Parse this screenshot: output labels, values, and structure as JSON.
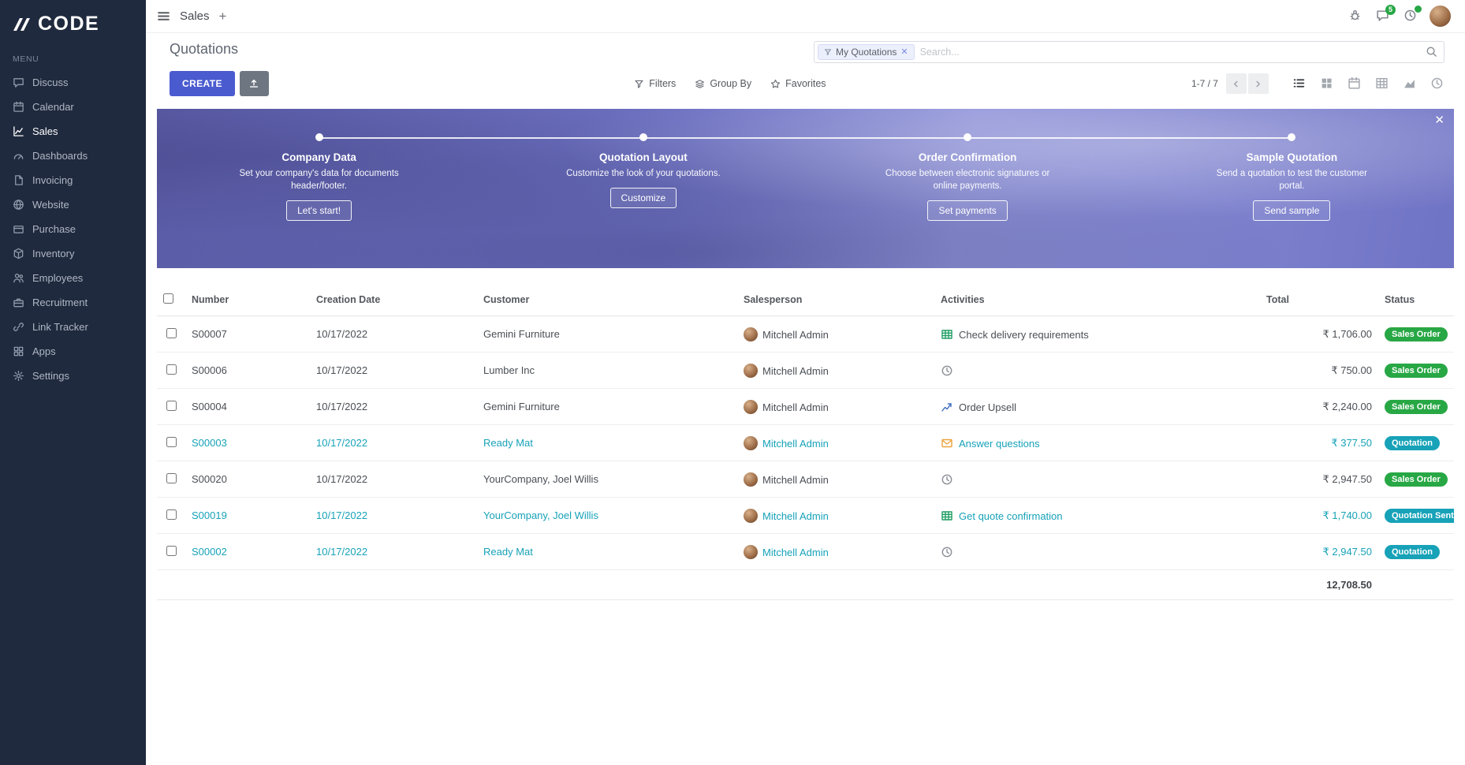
{
  "brand": {
    "name": "CODE"
  },
  "topbar": {
    "app_title": "Sales",
    "messages_badge": "5"
  },
  "sidebar": {
    "menu_label": "MENU",
    "items": [
      {
        "label": "Discuss",
        "icon": "discuss-icon",
        "active": false
      },
      {
        "label": "Calendar",
        "icon": "calendar-icon",
        "active": false
      },
      {
        "label": "Sales",
        "icon": "sales-icon",
        "active": true
      },
      {
        "label": "Dashboards",
        "icon": "dashboards-icon",
        "active": false
      },
      {
        "label": "Invoicing",
        "icon": "invoicing-icon",
        "active": false
      },
      {
        "label": "Website",
        "icon": "website-icon",
        "active": false
      },
      {
        "label": "Purchase",
        "icon": "purchase-icon",
        "active": false
      },
      {
        "label": "Inventory",
        "icon": "inventory-icon",
        "active": false
      },
      {
        "label": "Employees",
        "icon": "employees-icon",
        "active": false
      },
      {
        "label": "Recruitment",
        "icon": "recruitment-icon",
        "active": false
      },
      {
        "label": "Link Tracker",
        "icon": "link-tracker-icon",
        "active": false
      },
      {
        "label": "Apps",
        "icon": "apps-icon",
        "active": false
      },
      {
        "label": "Settings",
        "icon": "settings-icon",
        "active": false
      }
    ]
  },
  "control_panel": {
    "title": "Quotations",
    "search": {
      "facet": "My Quotations",
      "placeholder": "Search..."
    },
    "create_label": "CREATE",
    "filters_label": "Filters",
    "group_by_label": "Group By",
    "favorites_label": "Favorites",
    "pager": "1-7 / 7"
  },
  "banner": {
    "steps": [
      {
        "title": "Company Data",
        "desc": "Set your company's data for documents header/footer.",
        "button": "Let's start!"
      },
      {
        "title": "Quotation Layout",
        "desc": "Customize the look of your quotations.",
        "button": "Customize"
      },
      {
        "title": "Order Confirmation",
        "desc": "Choose between electronic signatures or online payments.",
        "button": "Set payments"
      },
      {
        "title": "Sample Quotation",
        "desc": "Send a quotation to test the customer portal.",
        "button": "Send sample"
      }
    ]
  },
  "table": {
    "headers": [
      "Number",
      "Creation Date",
      "Customer",
      "Salesperson",
      "Activities",
      "Total",
      "Status"
    ],
    "rows": [
      {
        "number": "S00007",
        "date": "10/17/2022",
        "customer": "Gemini Furniture",
        "salesperson": "Mitchell Admin",
        "activity_icon": "spreadsheet-icon",
        "activity": "Check delivery requirements",
        "total": "₹ 1,706.00",
        "status": "Sales Order",
        "status_variant": "success",
        "highlight": false
      },
      {
        "number": "S00006",
        "date": "10/17/2022",
        "customer": "Lumber Inc",
        "salesperson": "Mitchell Admin",
        "activity_icon": "clock-icon",
        "activity": "",
        "total": "₹ 750.00",
        "status": "Sales Order",
        "status_variant": "success",
        "highlight": false
      },
      {
        "number": "S00004",
        "date": "10/17/2022",
        "customer": "Gemini Furniture",
        "salesperson": "Mitchell Admin",
        "activity_icon": "chart-icon",
        "activity": "Order Upsell",
        "total": "₹ 2,240.00",
        "status": "Sales Order",
        "status_variant": "success",
        "highlight": false
      },
      {
        "number": "S00003",
        "date": "10/17/2022",
        "customer": "Ready Mat",
        "salesperson": "Mitchell Admin",
        "activity_icon": "envelope-icon",
        "activity": "Answer questions",
        "total": "₹ 377.50",
        "status": "Quotation",
        "status_variant": "info",
        "highlight": true
      },
      {
        "number": "S00020",
        "date": "10/17/2022",
        "customer": "YourCompany, Joel Willis",
        "salesperson": "Mitchell Admin",
        "activity_icon": "clock-icon",
        "activity": "",
        "total": "₹ 2,947.50",
        "status": "Sales Order",
        "status_variant": "success",
        "highlight": false
      },
      {
        "number": "S00019",
        "date": "10/17/2022",
        "customer": "YourCompany, Joel Willis",
        "salesperson": "Mitchell Admin",
        "activity_icon": "spreadsheet-icon",
        "activity": "Get quote confirmation",
        "total": "₹ 1,740.00",
        "status": "Quotation Sent",
        "status_variant": "info",
        "highlight": true
      },
      {
        "number": "S00002",
        "date": "10/17/2022",
        "customer": "Ready Mat",
        "salesperson": "Mitchell Admin",
        "activity_icon": "clock-icon",
        "activity": "",
        "total": "₹ 2,947.50",
        "status": "Quotation",
        "status_variant": "info",
        "highlight": true
      }
    ],
    "footer_total": "12,708.50"
  }
}
